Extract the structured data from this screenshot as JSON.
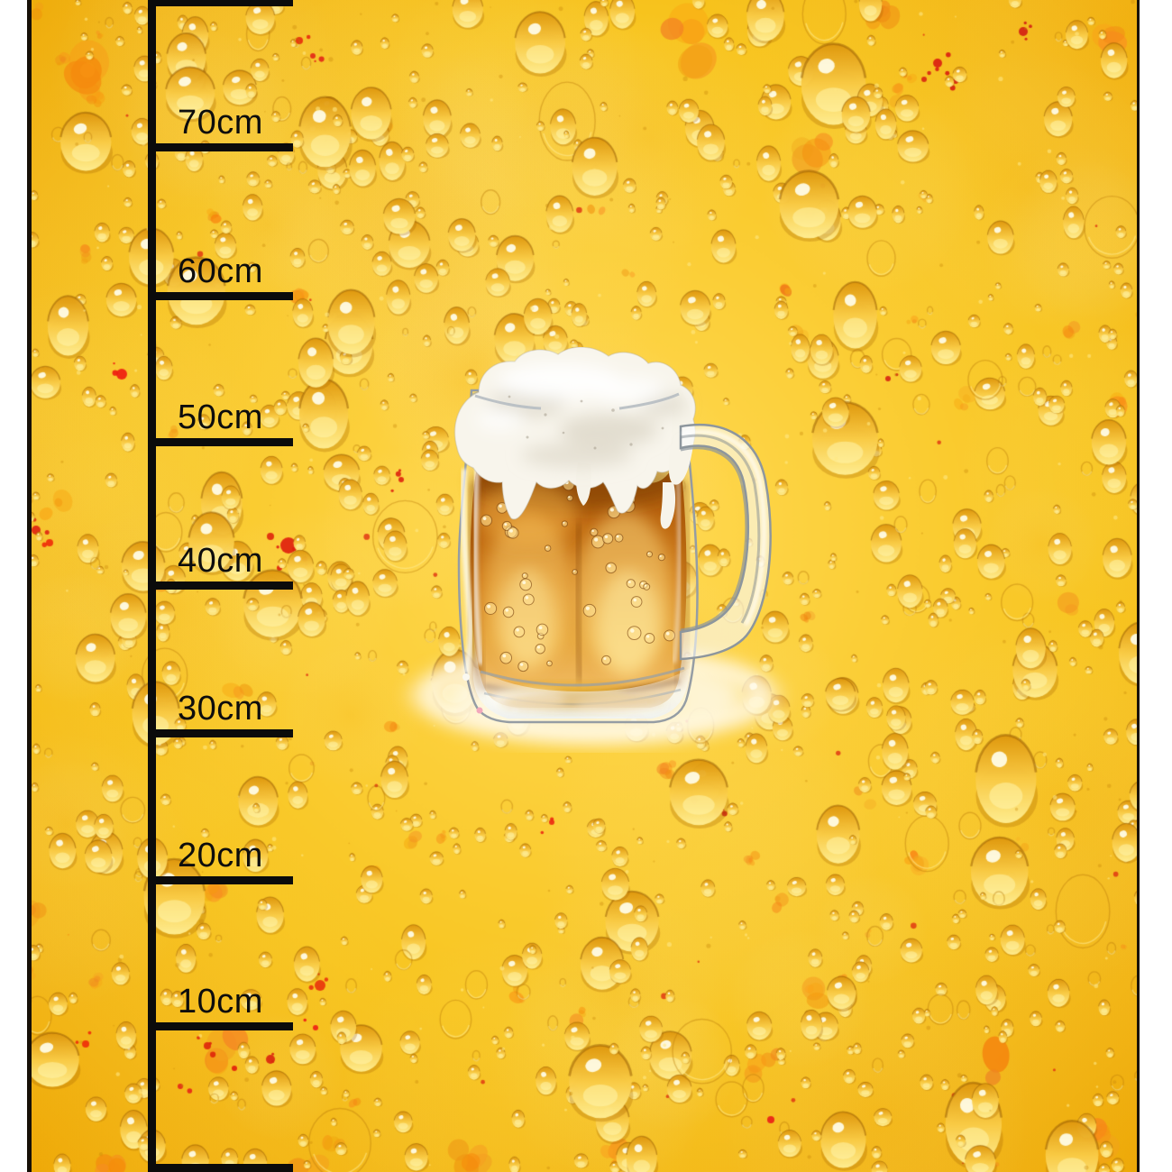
{
  "ruler": {
    "labels": [
      {
        "text": "70cm"
      },
      {
        "text": "60cm"
      },
      {
        "text": "50cm"
      },
      {
        "text": "40cm"
      },
      {
        "text": "30cm"
      },
      {
        "text": "20cm"
      },
      {
        "text": "10cm"
      }
    ]
  },
  "artwork": {
    "subject": "watercolor-beer-mug-with-foam-on-cream-halo",
    "pattern": "beer-drops-with-orange-red-splatter"
  },
  "colors": {
    "background_light": "#ffd84f",
    "background_gold": "#f8c51f",
    "background_deep": "#efaa06",
    "droplet_highlight": "#ffeb8f",
    "droplet_shadow": "#c8860b",
    "splatter_orange": "#f08c1c",
    "splatter_red": "#e03214",
    "ruler_black": "#0b0b0b",
    "panel_margin_white": "#ffffff",
    "beer_amber": "#c9781a",
    "foam_white": "#f8f5ec",
    "halo_cream": "#fdf3da"
  }
}
